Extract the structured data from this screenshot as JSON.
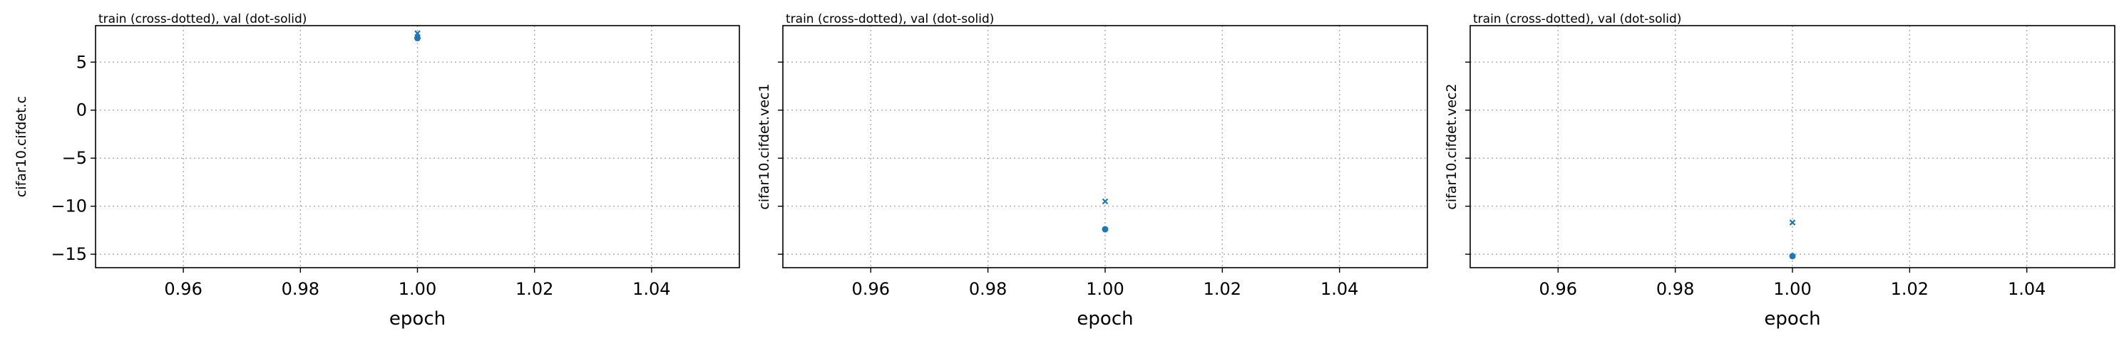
{
  "chart_data": [
    {
      "type": "scatter",
      "title": "train (cross-dotted), val (dot-solid)",
      "xlabel": "epoch",
      "ylabel": "cifar10.cifdet.c",
      "xlim": [
        0.945,
        1.055
      ],
      "ylim": [
        -16.4,
        8.8
      ],
      "xticks": [
        0.96,
        0.98,
        1.0,
        1.02,
        1.04
      ],
      "xtick_labels": [
        "0.96",
        "0.98",
        "1.00",
        "1.02",
        "1.04"
      ],
      "yticks": [
        5,
        0,
        -5,
        -10,
        -15
      ],
      "ytick_labels": [
        "5",
        "0",
        "−5",
        "−10",
        "−15"
      ],
      "grid": true,
      "series": [
        {
          "name": "train",
          "marker": "x",
          "x": [
            1.0
          ],
          "y": [
            8.0
          ]
        },
        {
          "name": "val",
          "marker": "o",
          "x": [
            1.0
          ],
          "y": [
            7.5
          ]
        }
      ]
    },
    {
      "type": "scatter",
      "title": "train (cross-dotted), val (dot-solid)",
      "xlabel": "epoch",
      "ylabel": "cifar10.cifdet.vec1",
      "xlim": [
        0.945,
        1.055
      ],
      "ylim": [
        -16.4,
        8.8
      ],
      "xticks": [
        0.96,
        0.98,
        1.0,
        1.02,
        1.04
      ],
      "xtick_labels": [
        "0.96",
        "0.98",
        "1.00",
        "1.02",
        "1.04"
      ],
      "yticks": [
        5,
        0,
        -5,
        -10,
        -15
      ],
      "ytick_labels": [],
      "grid": true,
      "series": [
        {
          "name": "train",
          "marker": "x",
          "x": [
            1.0
          ],
          "y": [
            -9.5
          ]
        },
        {
          "name": "val",
          "marker": "o",
          "x": [
            1.0
          ],
          "y": [
            -12.4
          ]
        }
      ]
    },
    {
      "type": "scatter",
      "title": "train (cross-dotted), val (dot-solid)",
      "xlabel": "epoch",
      "ylabel": "cifar10.cifdet.vec2",
      "xlim": [
        0.945,
        1.055
      ],
      "ylim": [
        -16.4,
        8.8
      ],
      "xticks": [
        0.96,
        0.98,
        1.0,
        1.02,
        1.04
      ],
      "xtick_labels": [
        "0.96",
        "0.98",
        "1.00",
        "1.02",
        "1.04"
      ],
      "yticks": [
        5,
        0,
        -5,
        -10,
        -15
      ],
      "ytick_labels": [],
      "grid": true,
      "series": [
        {
          "name": "train",
          "marker": "x",
          "x": [
            1.0
          ],
          "y": [
            -11.7
          ]
        },
        {
          "name": "val",
          "marker": "o",
          "x": [
            1.0
          ],
          "y": [
            -15.2
          ]
        }
      ]
    }
  ],
  "colors": {
    "series": "#1f77b4",
    "grid": "#b0b0b0",
    "axes": "#000000"
  }
}
